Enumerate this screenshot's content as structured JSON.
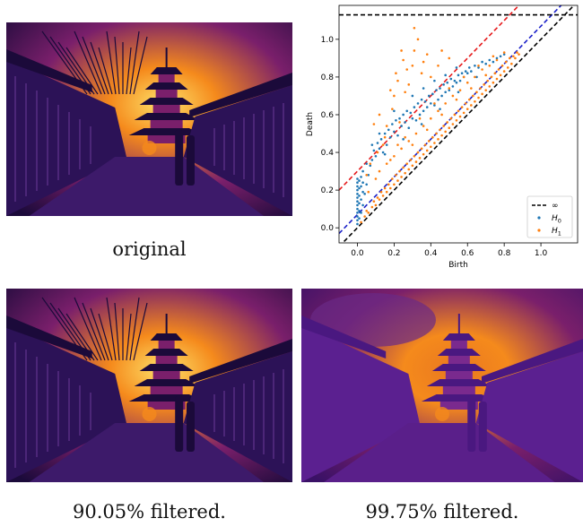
{
  "figures": [
    {
      "id": "original",
      "caption": "original",
      "filter": "none"
    },
    {
      "id": "filtered-90",
      "caption": "90.05% filtered.",
      "filter": "mild"
    },
    {
      "id": "filtered-99",
      "caption": "99.75% filtered.",
      "filter": "strong"
    }
  ],
  "colors": {
    "h0": "#1f77b4",
    "h1": "#ff7f0e",
    "infinity_line": "#000000",
    "band_red": "#e6191b",
    "band_blue": "#1a1fc8",
    "img_dark": "#1b0a3a",
    "img_mid": "#7a1f6b",
    "img_glow": "#f58a1c",
    "img_bright": "#fde26a"
  },
  "chart_data": {
    "type": "scatter",
    "title": "",
    "xlabel": "Birth",
    "ylabel": "Death",
    "xlim": [
      -0.1,
      1.2
    ],
    "ylim": [
      -0.08,
      1.18
    ],
    "xticks": [
      0.0,
      0.2,
      0.4,
      0.6,
      0.8,
      1.0
    ],
    "xtick_labels": [
      "0.0",
      "0.2",
      "0.4",
      "0.6",
      "0.8",
      "1.0"
    ],
    "yticks": [
      0.0,
      0.2,
      0.4,
      0.6,
      0.8,
      1.0
    ],
    "ytick_labels": [
      "0.0",
      "0.2",
      "0.4",
      "0.6",
      "0.8",
      "1.0"
    ],
    "grid": false,
    "legend": {
      "placement": "bottom-right",
      "entries": [
        {
          "label": "∞",
          "kind": "dashed-line"
        },
        {
          "label": "H0",
          "sub": "0",
          "base": "H",
          "kind": "marker",
          "series": "H0"
        },
        {
          "label": "H1",
          "sub": "1",
          "base": "H",
          "kind": "marker",
          "series": "H1"
        }
      ]
    },
    "lines": [
      {
        "name": "diagonal",
        "kind": "diagonal",
        "offset": 0.0,
        "color": "#000000",
        "style": "dashed"
      },
      {
        "name": "blue-band",
        "kind": "diagonal",
        "offset": 0.07,
        "color": "#1a1fc8",
        "style": "dashed"
      },
      {
        "name": "red-band",
        "kind": "diagonal",
        "offset": 0.3,
        "color": "#e6191b",
        "style": "dashed"
      },
      {
        "name": "infinity",
        "kind": "horizontal",
        "y": 1.13,
        "color": "#000000",
        "style": "dashed"
      }
    ],
    "series": [
      {
        "name": "H0",
        "color": "#1f77b4",
        "points": [
          [
            0.0,
            0.02
          ],
          [
            0.0,
            0.04
          ],
          [
            0.0,
            0.06
          ],
          [
            0.0,
            0.08
          ],
          [
            0.0,
            0.1
          ],
          [
            0.0,
            0.12
          ],
          [
            0.0,
            0.14
          ],
          [
            0.0,
            0.16
          ],
          [
            0.0,
            0.18
          ],
          [
            0.0,
            0.2
          ],
          [
            0.0,
            0.22
          ],
          [
            0.0,
            0.24
          ],
          [
            0.0,
            0.26
          ],
          [
            0.01,
            0.05
          ],
          [
            0.01,
            0.09
          ],
          [
            0.01,
            0.13
          ],
          [
            0.01,
            0.17
          ],
          [
            0.01,
            0.21
          ],
          [
            0.01,
            0.25
          ],
          [
            0.02,
            0.08
          ],
          [
            0.02,
            0.15
          ],
          [
            0.02,
            0.22
          ],
          [
            0.02,
            0.27
          ],
          [
            0.03,
            0.12
          ],
          [
            0.03,
            0.19
          ],
          [
            0.03,
            0.24
          ],
          [
            0.03,
            0.3
          ],
          [
            0.04,
            0.18
          ],
          [
            0.05,
            0.23
          ],
          [
            0.05,
            0.34
          ],
          [
            0.06,
            0.28
          ],
          [
            0.07,
            0.33
          ],
          [
            0.08,
            0.36
          ],
          [
            0.09,
            0.41
          ],
          [
            0.1,
            0.38
          ],
          [
            0.11,
            0.45
          ],
          [
            0.12,
            0.42
          ],
          [
            0.13,
            0.47
          ],
          [
            0.14,
            0.4
          ],
          [
            0.15,
            0.5
          ],
          [
            0.16,
            0.44
          ],
          [
            0.17,
            0.52
          ],
          [
            0.18,
            0.48
          ],
          [
            0.19,
            0.55
          ],
          [
            0.2,
            0.51
          ],
          [
            0.21,
            0.57
          ],
          [
            0.22,
            0.49
          ],
          [
            0.23,
            0.58
          ],
          [
            0.24,
            0.54
          ],
          [
            0.25,
            0.6
          ],
          [
            0.26,
            0.56
          ],
          [
            0.27,
            0.62
          ],
          [
            0.28,
            0.53
          ],
          [
            0.29,
            0.61
          ],
          [
            0.3,
            0.58
          ],
          [
            0.31,
            0.64
          ],
          [
            0.32,
            0.57
          ],
          [
            0.33,
            0.66
          ],
          [
            0.34,
            0.6
          ],
          [
            0.35,
            0.68
          ],
          [
            0.36,
            0.62
          ],
          [
            0.37,
            0.67
          ],
          [
            0.38,
            0.64
          ],
          [
            0.39,
            0.7
          ],
          [
            0.4,
            0.66
          ],
          [
            0.41,
            0.71
          ],
          [
            0.42,
            0.65
          ],
          [
            0.43,
            0.73
          ],
          [
            0.44,
            0.68
          ],
          [
            0.45,
            0.74
          ],
          [
            0.46,
            0.7
          ],
          [
            0.47,
            0.76
          ],
          [
            0.48,
            0.72
          ],
          [
            0.49,
            0.77
          ],
          [
            0.5,
            0.73
          ],
          [
            0.51,
            0.79
          ],
          [
            0.52,
            0.75
          ],
          [
            0.53,
            0.78
          ],
          [
            0.54,
            0.77
          ],
          [
            0.55,
            0.81
          ],
          [
            0.56,
            0.78
          ],
          [
            0.57,
            0.82
          ],
          [
            0.58,
            0.8
          ],
          [
            0.59,
            0.83
          ],
          [
            0.6,
            0.82
          ],
          [
            0.61,
            0.85
          ],
          [
            0.62,
            0.83
          ],
          [
            0.64,
            0.86
          ],
          [
            0.66,
            0.85
          ],
          [
            0.68,
            0.88
          ],
          [
            0.7,
            0.87
          ],
          [
            0.72,
            0.89
          ],
          [
            0.74,
            0.88
          ],
          [
            0.76,
            0.9
          ],
          [
            0.78,
            0.91
          ],
          [
            0.8,
            0.92
          ],
          [
            0.2,
            0.62
          ],
          [
            0.12,
            0.5
          ],
          [
            0.08,
            0.44
          ],
          [
            0.3,
            0.7
          ],
          [
            0.36,
            0.74
          ],
          [
            0.42,
            0.78
          ],
          [
            0.48,
            0.81
          ],
          [
            0.54,
            0.85
          ],
          [
            0.15,
            0.39
          ],
          [
            0.25,
            0.47
          ],
          [
            0.35,
            0.55
          ],
          [
            0.45,
            0.63
          ],
          [
            0.55,
            0.72
          ],
          [
            0.65,
            0.8
          ]
        ]
      },
      {
        "name": "H1",
        "color": "#ff7f0e",
        "points": [
          [
            0.02,
            0.03
          ],
          [
            0.04,
            0.06
          ],
          [
            0.05,
            0.09
          ],
          [
            0.06,
            0.08
          ],
          [
            0.08,
            0.11
          ],
          [
            0.09,
            0.14
          ],
          [
            0.1,
            0.12
          ],
          [
            0.11,
            0.16
          ],
          [
            0.12,
            0.15
          ],
          [
            0.13,
            0.19
          ],
          [
            0.14,
            0.17
          ],
          [
            0.15,
            0.21
          ],
          [
            0.16,
            0.19
          ],
          [
            0.17,
            0.23
          ],
          [
            0.18,
            0.21
          ],
          [
            0.19,
            0.26
          ],
          [
            0.2,
            0.23
          ],
          [
            0.21,
            0.28
          ],
          [
            0.22,
            0.25
          ],
          [
            0.23,
            0.3
          ],
          [
            0.24,
            0.27
          ],
          [
            0.25,
            0.32
          ],
          [
            0.26,
            0.29
          ],
          [
            0.27,
            0.34
          ],
          [
            0.28,
            0.31
          ],
          [
            0.29,
            0.36
          ],
          [
            0.3,
            0.33
          ],
          [
            0.31,
            0.38
          ],
          [
            0.32,
            0.35
          ],
          [
            0.33,
            0.4
          ],
          [
            0.34,
            0.37
          ],
          [
            0.35,
            0.42
          ],
          [
            0.36,
            0.39
          ],
          [
            0.37,
            0.44
          ],
          [
            0.38,
            0.41
          ],
          [
            0.39,
            0.46
          ],
          [
            0.4,
            0.43
          ],
          [
            0.41,
            0.48
          ],
          [
            0.42,
            0.45
          ],
          [
            0.43,
            0.5
          ],
          [
            0.44,
            0.47
          ],
          [
            0.45,
            0.52
          ],
          [
            0.46,
            0.49
          ],
          [
            0.47,
            0.54
          ],
          [
            0.48,
            0.51
          ],
          [
            0.49,
            0.56
          ],
          [
            0.5,
            0.53
          ],
          [
            0.51,
            0.58
          ],
          [
            0.52,
            0.55
          ],
          [
            0.53,
            0.6
          ],
          [
            0.54,
            0.57
          ],
          [
            0.55,
            0.62
          ],
          [
            0.56,
            0.59
          ],
          [
            0.57,
            0.64
          ],
          [
            0.58,
            0.61
          ],
          [
            0.59,
            0.66
          ],
          [
            0.6,
            0.63
          ],
          [
            0.61,
            0.68
          ],
          [
            0.62,
            0.65
          ],
          [
            0.63,
            0.7
          ],
          [
            0.64,
            0.67
          ],
          [
            0.65,
            0.72
          ],
          [
            0.66,
            0.69
          ],
          [
            0.67,
            0.74
          ],
          [
            0.68,
            0.71
          ],
          [
            0.69,
            0.76
          ],
          [
            0.7,
            0.73
          ],
          [
            0.71,
            0.78
          ],
          [
            0.72,
            0.75
          ],
          [
            0.73,
            0.8
          ],
          [
            0.74,
            0.77
          ],
          [
            0.75,
            0.82
          ],
          [
            0.76,
            0.79
          ],
          [
            0.77,
            0.84
          ],
          [
            0.78,
            0.81
          ],
          [
            0.79,
            0.86
          ],
          [
            0.8,
            0.83
          ],
          [
            0.81,
            0.88
          ],
          [
            0.82,
            0.85
          ],
          [
            0.83,
            0.9
          ],
          [
            0.84,
            0.87
          ],
          [
            0.85,
            0.91
          ],
          [
            0.86,
            0.9
          ],
          [
            0.87,
            0.93
          ],
          [
            0.88,
            0.92
          ],
          [
            0.8,
            0.93
          ],
          [
            0.72,
            0.86
          ],
          [
            0.64,
            0.8
          ],
          [
            0.56,
            0.73
          ],
          [
            0.48,
            0.66
          ],
          [
            0.4,
            0.58
          ],
          [
            0.32,
            0.5
          ],
          [
            0.24,
            0.42
          ],
          [
            0.16,
            0.34
          ],
          [
            0.1,
            0.26
          ],
          [
            0.06,
            0.19
          ],
          [
            0.2,
            0.38
          ],
          [
            0.28,
            0.46
          ],
          [
            0.36,
            0.54
          ],
          [
            0.44,
            0.62
          ],
          [
            0.52,
            0.7
          ],
          [
            0.6,
            0.77
          ],
          [
            0.68,
            0.84
          ],
          [
            0.76,
            0.89
          ],
          [
            0.3,
            0.44
          ],
          [
            0.38,
            0.52
          ],
          [
            0.46,
            0.6
          ],
          [
            0.54,
            0.68
          ],
          [
            0.62,
            0.74
          ],
          [
            0.7,
            0.81
          ],
          [
            0.12,
            0.3
          ],
          [
            0.18,
            0.36
          ],
          [
            0.26,
            0.48
          ],
          [
            0.34,
            0.58
          ],
          [
            0.42,
            0.66
          ],
          [
            0.5,
            0.74
          ],
          [
            0.58,
            0.8
          ],
          [
            0.66,
            0.86
          ],
          [
            0.74,
            0.91
          ],
          [
            0.22,
            0.44
          ],
          [
            0.14,
            0.44
          ],
          [
            0.16,
            0.54
          ],
          [
            0.19,
            0.63
          ],
          [
            0.22,
            0.78
          ],
          [
            0.25,
            0.89
          ],
          [
            0.3,
            0.86
          ],
          [
            0.31,
            0.94
          ],
          [
            0.27,
            0.84
          ],
          [
            0.24,
            0.94
          ],
          [
            0.33,
            1.0
          ],
          [
            0.31,
            1.06
          ],
          [
            0.18,
            0.73
          ],
          [
            0.21,
            0.82
          ],
          [
            0.28,
            0.76
          ],
          [
            0.35,
            0.82
          ],
          [
            0.12,
            0.6
          ],
          [
            0.09,
            0.55
          ],
          [
            0.2,
            0.7
          ],
          [
            0.26,
            0.72
          ],
          [
            0.36,
            0.88
          ],
          [
            0.4,
            0.8
          ],
          [
            0.44,
            0.86
          ],
          [
            0.5,
            0.9
          ],
          [
            0.38,
            0.92
          ],
          [
            0.46,
            0.94
          ],
          [
            0.23,
            0.56
          ],
          [
            0.15,
            0.48
          ],
          [
            0.11,
            0.4
          ],
          [
            0.07,
            0.34
          ],
          [
            0.05,
            0.28
          ]
        ]
      }
    ]
  }
}
